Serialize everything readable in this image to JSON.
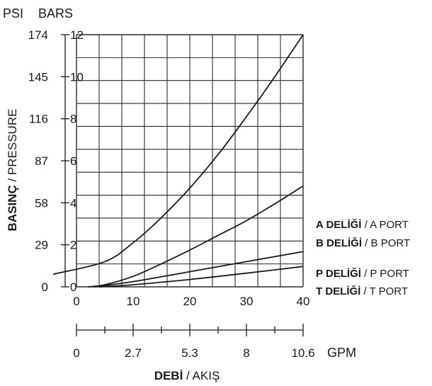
{
  "chart_data": {
    "type": "line",
    "units_top": {
      "psi": "PSI",
      "bars": "BARS"
    },
    "ylabel": {
      "bold": "BASINÇ",
      "rest": " / PRESSURE"
    },
    "xlabel": {
      "bold": "DEBİ",
      "rest": " / AKIŞ"
    },
    "x_unit_secondary": "GPM",
    "xlim": [
      0,
      40
    ],
    "ylim": [
      0,
      12
    ],
    "y_ticks_bars": [
      "0",
      "2",
      "4",
      "6",
      "8",
      "10",
      "12"
    ],
    "y_ticks_psi": [
      "0",
      "29",
      "58",
      "87",
      "116",
      "145",
      "174"
    ],
    "x_ticks_lpm": [
      "0",
      "10",
      "20",
      "30",
      "40"
    ],
    "x_ticks_gpm": [
      "0",
      "2.7",
      "5.3",
      "8",
      "10.6"
    ],
    "grid": true,
    "series": [
      {
        "name": "A PORT",
        "x": [
          0,
          5,
          10,
          15,
          20,
          25,
          30,
          35,
          40
        ],
        "y": [
          0.6,
          1.2,
          2.1,
          3.3,
          4.7,
          6.3,
          8.1,
          10.0,
          12.0
        ]
      },
      {
        "name": "B PORT",
        "x": [
          2,
          5,
          10,
          15,
          20,
          25,
          30,
          35,
          40
        ],
        "y": [
          0,
          0.1,
          0.5,
          1.1,
          1.75,
          2.45,
          3.15,
          3.95,
          4.8
        ]
      },
      {
        "name": "P PORT",
        "x": [
          3,
          10,
          20,
          30,
          40
        ],
        "y": [
          0,
          0.25,
          0.72,
          1.2,
          1.68
        ]
      },
      {
        "name": "T PORT",
        "x": [
          4,
          10,
          20,
          30,
          40
        ],
        "y": [
          0,
          0.1,
          0.35,
          0.65,
          0.97
        ]
      }
    ],
    "legend": [
      {
        "bold": "A DELİĞİ",
        "rest": " / A PORT"
      },
      {
        "bold": "B DELİĞİ",
        "rest": " / B PORT"
      },
      {
        "bold": "P DELİĞİ",
        "rest": " / P PORT"
      },
      {
        "bold": "T DELİĞİ",
        "rest": " / T PORT"
      }
    ]
  }
}
